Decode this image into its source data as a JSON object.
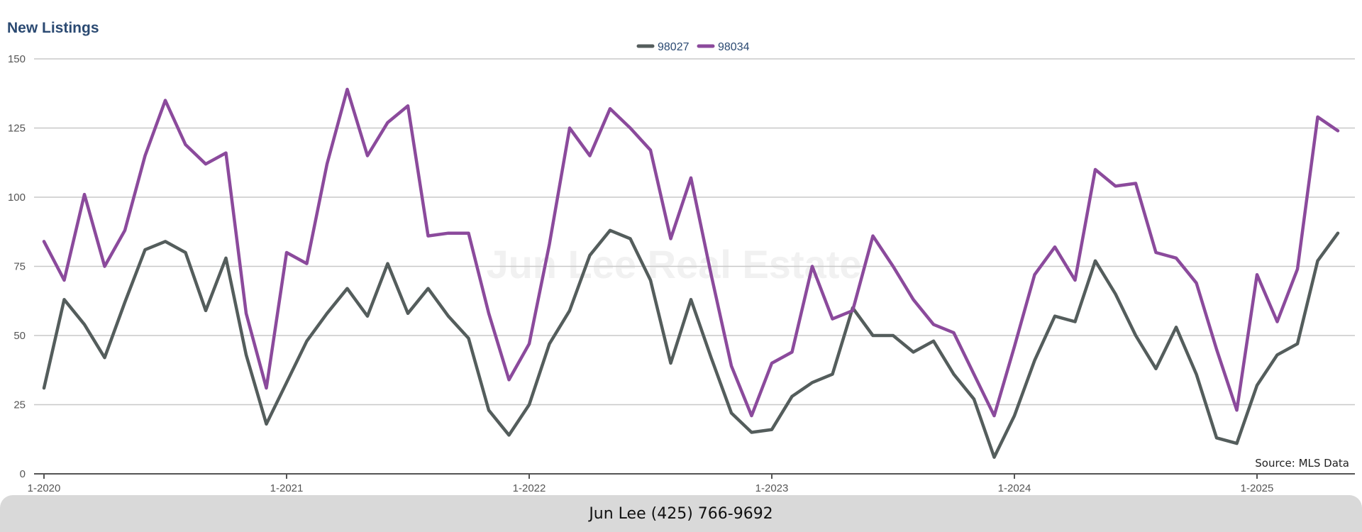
{
  "footer": {
    "contact": "Jun Lee (425) 766-9692"
  },
  "watermark": "Jun Lee Real Estate",
  "source_note": "Source: MLS Data",
  "colors": {
    "98027": "#545d5c",
    "98034": "#8b4a9c",
    "grid": "#c8c8c8",
    "axis": "#555555"
  },
  "chart_data": {
    "type": "line",
    "title": "New Listings",
    "xlabel": "",
    "ylabel": "",
    "ylim": [
      0,
      150
    ],
    "yticks": [
      0,
      25,
      50,
      75,
      100,
      125,
      150
    ],
    "xtick_labels": [
      "1-2020",
      "1-2021",
      "1-2022",
      "1-2023",
      "1-2024",
      "1-2025"
    ],
    "grid": true,
    "legend_position": "top-center",
    "x": [
      "1-2020",
      "2-2020",
      "3-2020",
      "4-2020",
      "5-2020",
      "6-2020",
      "7-2020",
      "8-2020",
      "9-2020",
      "10-2020",
      "11-2020",
      "12-2020",
      "1-2021",
      "2-2021",
      "3-2021",
      "4-2021",
      "5-2021",
      "6-2021",
      "7-2021",
      "8-2021",
      "9-2021",
      "10-2021",
      "11-2021",
      "12-2021",
      "1-2022",
      "2-2022",
      "3-2022",
      "4-2022",
      "5-2022",
      "6-2022",
      "7-2022",
      "8-2022",
      "9-2022",
      "10-2022",
      "11-2022",
      "12-2022",
      "1-2023",
      "2-2023",
      "3-2023",
      "4-2023",
      "5-2023",
      "6-2023",
      "7-2023",
      "8-2023",
      "9-2023",
      "10-2023",
      "11-2023",
      "12-2023",
      "1-2024",
      "2-2024",
      "3-2024",
      "4-2024",
      "5-2024",
      "6-2024",
      "7-2024",
      "8-2024",
      "9-2024",
      "10-2024",
      "11-2024",
      "12-2024",
      "1-2025",
      "2-2025",
      "3-2025",
      "4-2025",
      "5-2025"
    ],
    "series": [
      {
        "name": "98027",
        "values": [
          31,
          63,
          54,
          42,
          62,
          81,
          84,
          80,
          59,
          78,
          43,
          18,
          33,
          48,
          58,
          67,
          57,
          76,
          58,
          67,
          57,
          49,
          23,
          14,
          25,
          47,
          59,
          79,
          88,
          85,
          70,
          40,
          63,
          42,
          22,
          15,
          16,
          28,
          33,
          36,
          60,
          50,
          50,
          44,
          48,
          36,
          27,
          6,
          21,
          41,
          57,
          55,
          77,
          65,
          50,
          38,
          53,
          36,
          13,
          11,
          32,
          43,
          47,
          77,
          87
        ]
      },
      {
        "name": "98034",
        "values": [
          84,
          70,
          101,
          75,
          88,
          115,
          135,
          119,
          112,
          116,
          58,
          31,
          80,
          76,
          112,
          139,
          115,
          127,
          133,
          86,
          87,
          87,
          58,
          34,
          47,
          83,
          125,
          115,
          132,
          125,
          117,
          85,
          107,
          72,
          39,
          21,
          40,
          44,
          75,
          56,
          59,
          86,
          75,
          63,
          54,
          51,
          36,
          21,
          46,
          72,
          82,
          70,
          110,
          104,
          105,
          80,
          78,
          69,
          45,
          23,
          72,
          55,
          74,
          129,
          124
        ]
      }
    ]
  }
}
